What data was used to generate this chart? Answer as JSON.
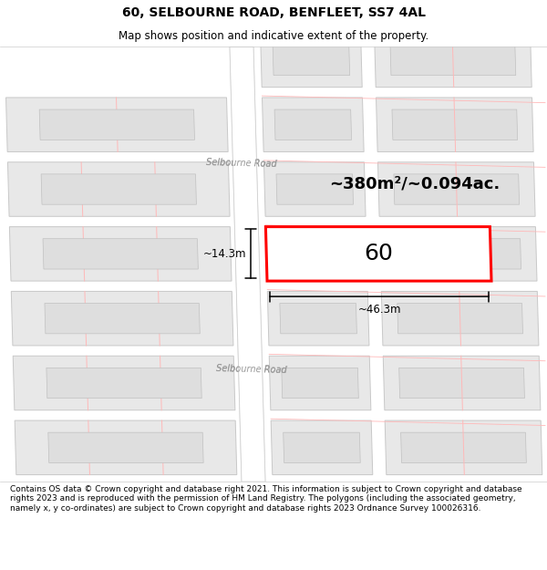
{
  "title": "60, SELBOURNE ROAD, BENFLEET, SS7 4AL",
  "subtitle": "Map shows position and indicative extent of the property.",
  "footer": "Contains OS data © Crown copyright and database right 2021. This information is subject to Crown copyright and database rights 2023 and is reproduced with the permission of HM Land Registry. The polygons (including the associated geometry, namely x, y co-ordinates) are subject to Crown copyright and database rights 2023 Ordnance Survey 100026316.",
  "area_text": "~380m²/~0.094ac.",
  "plot_label": "60",
  "dim_width": "~46.3m",
  "dim_height": "~14.3m",
  "road_label": "Selbourne Road",
  "bg_map": "#f7f7f7",
  "road_fill": "#ffffff",
  "block_fill": "#e8e8e8",
  "block_edge": "#c8c8c8",
  "lot_line": "#ffb8b8",
  "prop_edge": "#ff0000",
  "prop_fill": "#ffffff",
  "dim_color": "#000000",
  "road_label_color": "#999999",
  "title_size": 10,
  "subtitle_size": 8.5,
  "footer_size": 6.5,
  "area_size": 13,
  "label_size": 18,
  "dim_size": 8.5,
  "road_label_size": 7
}
